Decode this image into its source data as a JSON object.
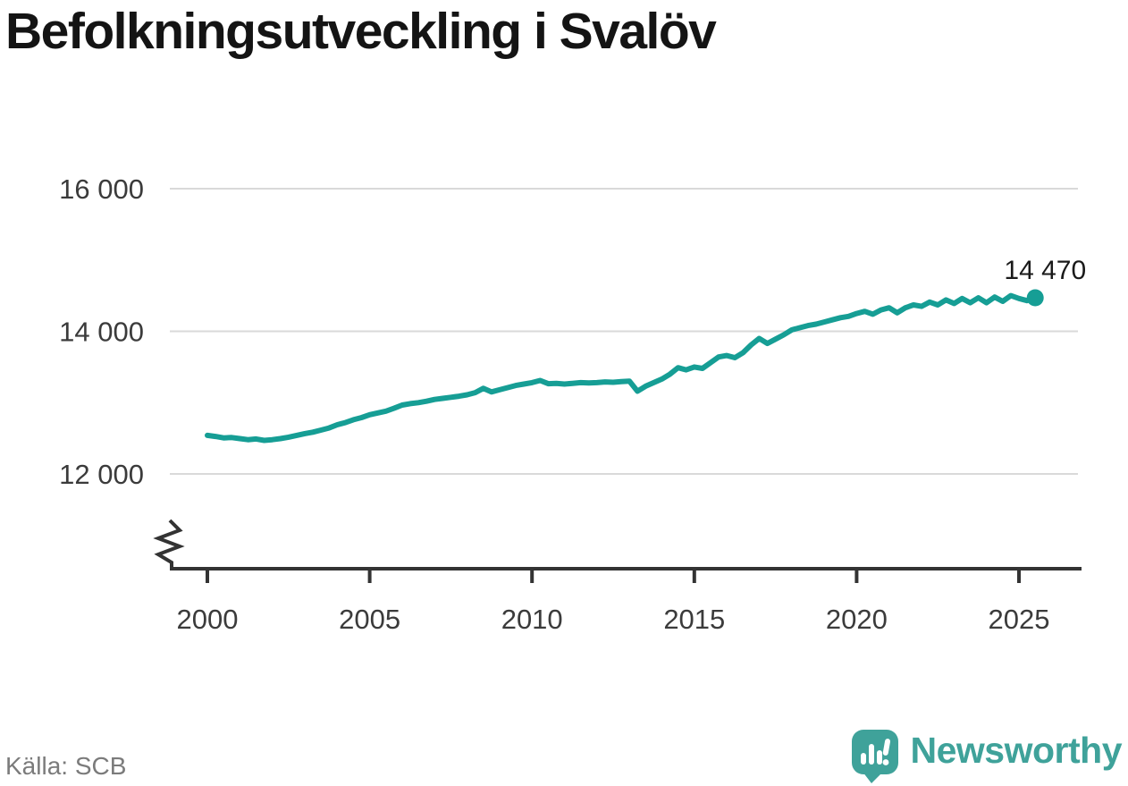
{
  "title": "Befolkningsutveckling i Svalöv",
  "source": "Källa: SCB",
  "logo": {
    "text": "Newsworthy",
    "color": "#3FA29A"
  },
  "colors": {
    "line": "#169E95",
    "grid": "#D9D9D9",
    "axis": "#333333",
    "tick": "#3B3B3B",
    "title": "#141414",
    "annotation": "#1A1A1A",
    "source": "#7B7B7B",
    "background": "#FFFFFF"
  },
  "chart_data": {
    "type": "line",
    "title": "Befolkningsutveckling i Svalöv",
    "source": "Källa: SCB",
    "x_unit": "year",
    "x_start": 2000,
    "x_step": 0.25,
    "values": [
      12540,
      12525,
      12505,
      12510,
      12495,
      12480,
      12490,
      12470,
      12480,
      12495,
      12515,
      12540,
      12565,
      12585,
      12615,
      12645,
      12690,
      12720,
      12760,
      12790,
      12830,
      12855,
      12880,
      12920,
      12965,
      12985,
      13000,
      13020,
      13045,
      13060,
      13075,
      13090,
      13110,
      13140,
      13200,
      13150,
      13180,
      13210,
      13240,
      13260,
      13280,
      13310,
      13265,
      13270,
      13260,
      13270,
      13280,
      13275,
      13280,
      13290,
      13285,
      13295,
      13300,
      13160,
      13230,
      13280,
      13330,
      13400,
      13490,
      13460,
      13500,
      13480,
      13560,
      13640,
      13660,
      13630,
      13700,
      13810,
      13900,
      13830,
      13890,
      13950,
      14020,
      14050,
      14080,
      14100,
      14130,
      14160,
      14190,
      14210,
      14250,
      14280,
      14240,
      14300,
      14330,
      14260,
      14330,
      14370,
      14350,
      14410,
      14370,
      14440,
      14390,
      14460,
      14400,
      14470,
      14400,
      14480,
      14420,
      14500,
      14460,
      14430,
      14470
    ],
    "end_x": 2025.5,
    "end_value": 14470,
    "end_label": "14 470",
    "xticks": {
      "values": [
        2000,
        2005,
        2010,
        2015,
        2020,
        2025
      ],
      "labels": [
        "2000",
        "2005",
        "2010",
        "2015",
        "2020",
        "2025"
      ]
    },
    "yticks": {
      "values": [
        12000,
        14000,
        16000
      ],
      "labels": [
        "12 000",
        "14 000",
        "16 000"
      ]
    },
    "ylim": [
      12000,
      16000
    ],
    "axis_break": true,
    "grid": "horizontal",
    "legend": "none",
    "line_color": "#169E95"
  }
}
